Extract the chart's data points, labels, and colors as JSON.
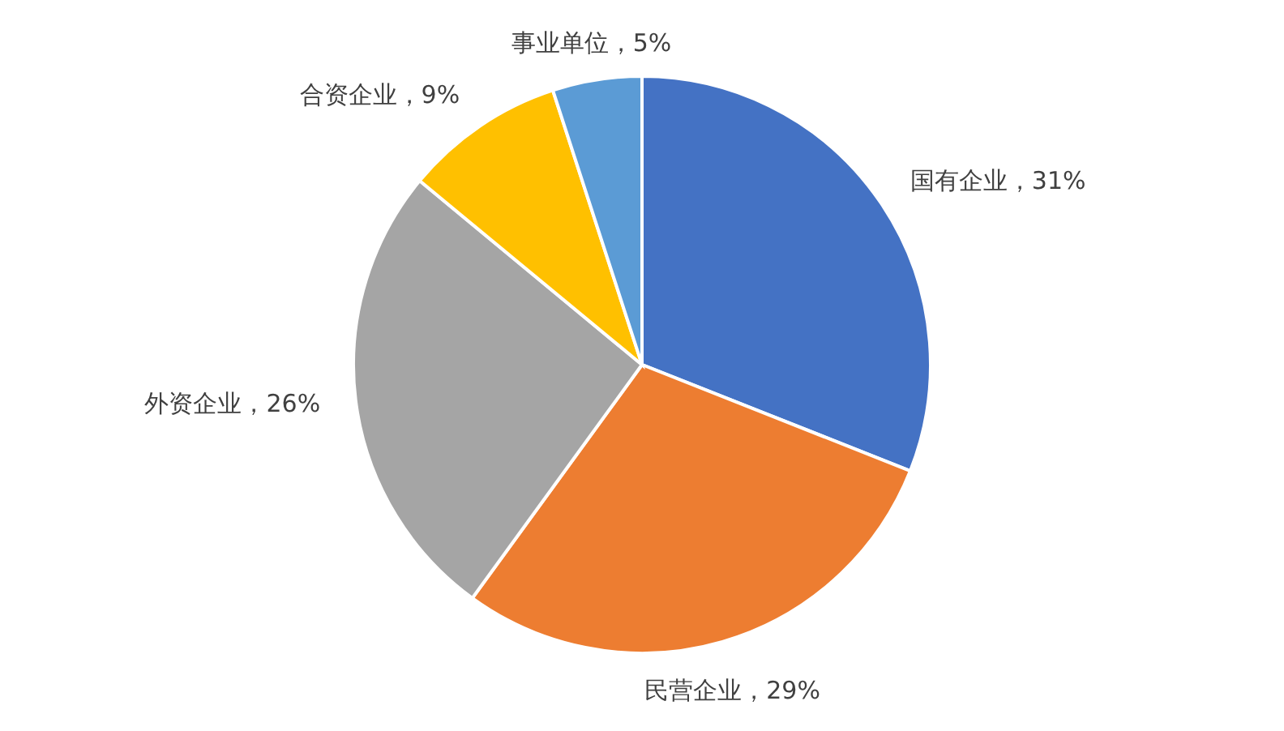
{
  "chart_data": {
    "type": "pie",
    "categories": [
      "国有企业",
      "民营企业",
      "外资企业",
      "合资企业",
      "事业单位"
    ],
    "values": [
      31,
      29,
      26,
      9,
      5
    ],
    "colors": [
      "#4472c4",
      "#ed7d31",
      "#a5a5a5",
      "#ffc000",
      "#5b9bd5"
    ],
    "value_labels": [
      "31%",
      "29%",
      "26%",
      "9%",
      "5%"
    ]
  }
}
